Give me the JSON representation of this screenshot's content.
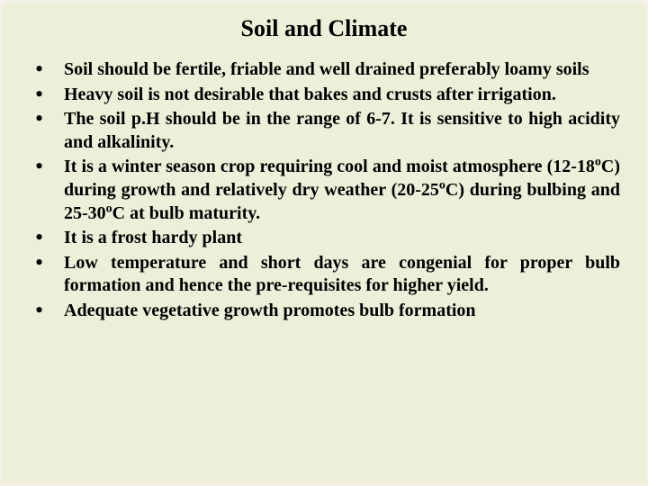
{
  "slide": {
    "title": "Soil and Climate",
    "title_fontsize": 26,
    "body_fontsize": 20,
    "background_color": "#ecf0d8",
    "border_color": "#f5f0e8",
    "text_color": "#000000",
    "font_family": "Times New Roman",
    "bullets": [
      {
        "text": "Soil should be fertile, friable and  well drained preferably loamy soils"
      },
      {
        "text": "Heavy soil is not desirable that bakes and crusts after irrigation."
      },
      {
        "text": "The soil p.H should be in the range of 6-7. It is sensitive to high acidity and alkalinity."
      },
      {
        "text": "It is a winter season crop requiring cool and moist atmosphere (12-18°C) during growth and relatively dry weather (20-25°C) during bulbing and 25-30°C at bulb maturity."
      },
      {
        "text": "It is a frost hardy plant"
      },
      {
        "text": "Low temperature and short days are congenial for proper bulb formation and hence the pre-requisites for higher yield."
      },
      {
        "text": "Adequate vegetative growth promotes bulb formation"
      }
    ]
  }
}
